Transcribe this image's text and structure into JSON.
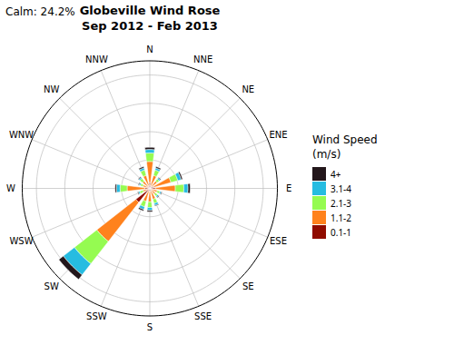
{
  "chart_data": {
    "type": "polar_bar",
    "title": "Globeville Wind Rose",
    "subtitle": "Sep 2012 - Feb 2013",
    "annotations": [
      "Calm: 24.2%"
    ],
    "legend_title": [
      "Wind Speed",
      "(m/s)"
    ],
    "categories": [
      "N",
      "NNE",
      "NE",
      "ENE",
      "E",
      "ESE",
      "SE",
      "SSE",
      "S",
      "SSW",
      "SW",
      "WSW",
      "W",
      "WNW",
      "NW",
      "NNW"
    ],
    "series": [
      {
        "name": "4+",
        "values": [
          0.3,
          0.2,
          0.1,
          0.2,
          0.3,
          0.1,
          0.1,
          0.1,
          0.2,
          0.2,
          0.8,
          0.1,
          0.2,
          0.1,
          0.1,
          0.2
        ]
      },
      {
        "name": "3.1-4",
        "values": [
          0.5,
          0.3,
          0.2,
          0.5,
          0.6,
          0.2,
          0.2,
          0.3,
          0.4,
          0.4,
          2.0,
          0.2,
          0.5,
          0.2,
          0.2,
          0.3
        ]
      },
      {
        "name": "2.1-3",
        "values": [
          1.2,
          0.8,
          0.4,
          1.0,
          1.2,
          0.4,
          0.4,
          0.6,
          0.8,
          0.8,
          4.0,
          0.5,
          1.0,
          0.4,
          0.5,
          0.8
        ]
      },
      {
        "name": "1.1-2",
        "values": [
          3.0,
          1.5,
          1.0,
          2.5,
          2.8,
          0.8,
          0.8,
          1.2,
          1.5,
          1.5,
          7.0,
          0.8,
          2.5,
          0.8,
          1.0,
          1.5
        ]
      },
      {
        "name": "0.1-1",
        "values": [
          0.8,
          0.4,
          0.3,
          0.6,
          0.8,
          0.3,
          0.2,
          0.4,
          0.4,
          0.4,
          2.5,
          0.2,
          0.7,
          0.2,
          0.3,
          0.4
        ]
      }
    ],
    "stacked": true,
    "ylim": [
      0,
      18
    ],
    "yticks": [
      4,
      8,
      12,
      16
    ],
    "tick_labels": "x",
    "grid": true,
    "legend": "right"
  }
}
